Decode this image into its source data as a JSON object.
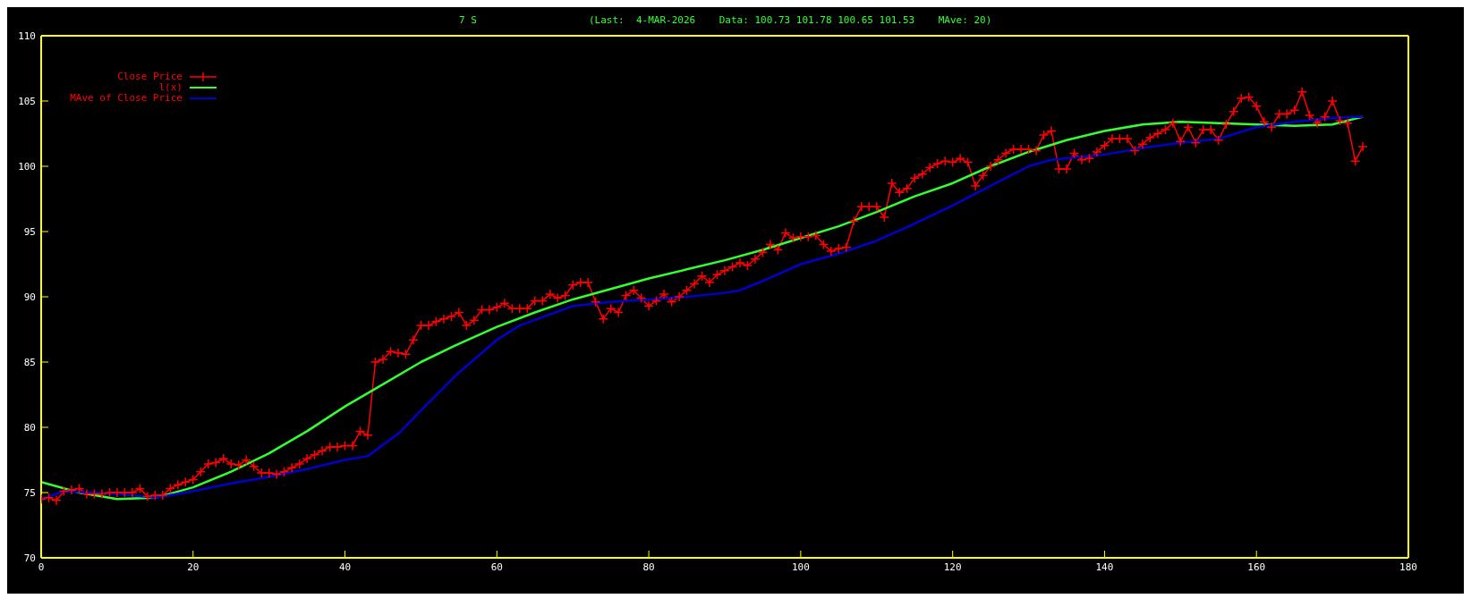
{
  "chart_data": {
    "type": "line",
    "title": "(Last:  4-MAR-2026    Data: 100.73 101.78 100.65 101.53    MAve: 20)",
    "annotations": [
      "7 S"
    ],
    "xlim": [
      0,
      180
    ],
    "xticks": [
      0,
      20,
      40,
      60,
      80,
      100,
      120,
      140,
      160,
      180
    ],
    "ylim": [
      70,
      110
    ],
    "yticks": [
      70,
      75,
      80,
      85,
      90,
      95,
      100,
      105,
      110
    ],
    "legend": "top left",
    "series": [
      {
        "name": "Close Price",
        "color": "#ff0000",
        "marker": "cross",
        "x": [
          0,
          1,
          2,
          3,
          4,
          5,
          6,
          7,
          8,
          9,
          10,
          11,
          12,
          13,
          14,
          15,
          16,
          17,
          18,
          19,
          20,
          21,
          22,
          23,
          24,
          25,
          26,
          27,
          28,
          29,
          30,
          31,
          32,
          33,
          34,
          35,
          36,
          37,
          38,
          39,
          40,
          41,
          42,
          43,
          44,
          45,
          46,
          47,
          48,
          49,
          50,
          51,
          52,
          53,
          54,
          55,
          56,
          57,
          58,
          59,
          60,
          61,
          62,
          63,
          64,
          65,
          66,
          67,
          68,
          69,
          70,
          71,
          72,
          73,
          74,
          75,
          76,
          77,
          78,
          79,
          80,
          81,
          82,
          83,
          84,
          85,
          86,
          87,
          88,
          89,
          90,
          91,
          92,
          93,
          94,
          95,
          96,
          97,
          98,
          99,
          100,
          101,
          102,
          103,
          104,
          105,
          106,
          107,
          108,
          109,
          110,
          111,
          112,
          113,
          114,
          115,
          116,
          117,
          118,
          119,
          120,
          121,
          122,
          123,
          124,
          125,
          126,
          127,
          128,
          129,
          130,
          131,
          132,
          133,
          134,
          135,
          136,
          137,
          138,
          139,
          140,
          141,
          142,
          143,
          144,
          145,
          146,
          147,
          148,
          149,
          150,
          151,
          152,
          153,
          154,
          155,
          156,
          157,
          158,
          159,
          160,
          161,
          162,
          163,
          164,
          165,
          166,
          167,
          168,
          169,
          170,
          171,
          172,
          173,
          174
        ],
        "values": [
          74.5,
          74.6,
          74.4,
          75.1,
          75.2,
          75.3,
          74.9,
          74.9,
          74.9,
          75.0,
          75.0,
          75.0,
          75.0,
          75.3,
          74.7,
          74.8,
          74.8,
          75.3,
          75.6,
          75.8,
          76.0,
          76.6,
          77.2,
          77.3,
          77.6,
          77.2,
          77.1,
          77.5,
          77.0,
          76.5,
          76.5,
          76.4,
          76.6,
          76.9,
          77.2,
          77.6,
          77.9,
          78.2,
          78.5,
          78.5,
          78.6,
          78.6,
          79.7,
          79.4,
          85.0,
          85.2,
          85.8,
          85.7,
          85.6,
          86.7,
          87.8,
          87.8,
          88.1,
          88.3,
          88.5,
          88.8,
          87.8,
          88.2,
          89.0,
          89.0,
          89.2,
          89.5,
          89.1,
          89.1,
          89.1,
          89.7,
          89.7,
          90.2,
          89.9,
          90.1,
          90.9,
          91.1,
          91.1,
          89.6,
          88.3,
          89.1,
          88.8,
          90.1,
          90.5,
          89.9,
          89.3,
          89.7,
          90.2,
          89.6,
          90.0,
          90.5,
          91.0,
          91.6,
          91.1,
          91.7,
          92.0,
          92.3,
          92.6,
          92.4,
          92.9,
          93.4,
          94.0,
          93.6,
          94.9,
          94.5,
          94.6,
          94.6,
          94.7,
          94.0,
          93.5,
          93.7,
          93.8,
          95.8,
          96.9,
          96.9,
          96.9,
          96.1,
          98.7,
          98.0,
          98.3,
          99.1,
          99.4,
          99.9,
          100.2,
          100.4,
          100.3,
          100.6,
          100.3,
          98.5,
          99.3,
          100.0,
          100.5,
          101.0,
          101.3,
          101.3,
          101.3,
          101.2,
          102.4,
          102.7,
          99.8,
          99.8,
          101.0,
          100.5,
          100.6,
          101.1,
          101.6,
          102.1,
          102.1,
          102.1,
          101.2,
          101.7,
          102.2,
          102.5,
          102.8,
          103.3,
          101.9,
          103.0,
          101.8,
          102.8,
          102.8,
          102.0,
          103.2,
          104.2,
          105.2,
          105.3,
          104.6,
          103.4,
          103.0,
          104.0,
          104.0,
          104.3,
          105.7,
          103.9,
          103.3,
          103.8,
          105.0,
          103.5,
          103.3,
          100.4,
          101.5
        ]
      },
      {
        "name": "l(x)",
        "color": "#33ff33",
        "marker": "none",
        "x": [
          0,
          5,
          10,
          15,
          20,
          25,
          30,
          35,
          40,
          45,
          50,
          55,
          60,
          65,
          70,
          75,
          80,
          85,
          90,
          95,
          100,
          105,
          110,
          115,
          120,
          125,
          130,
          135,
          140,
          145,
          150,
          155,
          160,
          165,
          170,
          174
        ],
        "values": [
          75.8,
          75.0,
          74.5,
          74.6,
          75.4,
          76.6,
          78.0,
          79.7,
          81.6,
          83.3,
          85.0,
          86.4,
          87.7,
          88.8,
          89.8,
          90.6,
          91.4,
          92.1,
          92.8,
          93.6,
          94.5,
          95.4,
          96.5,
          97.7,
          98.7,
          100.0,
          101.1,
          102.0,
          102.7,
          103.2,
          103.4,
          103.3,
          103.2,
          103.1,
          103.2,
          103.8
        ]
      },
      {
        "name": "MAve of Close Price",
        "color": "#0000cc",
        "marker": "none",
        "x": [
          0,
          3,
          10,
          15,
          20,
          25,
          30,
          35,
          40,
          43,
          47,
          50,
          55,
          60,
          63,
          70,
          75,
          80,
          85,
          90,
          92,
          95,
          100,
          105,
          110,
          115,
          120,
          125,
          130,
          133,
          140,
          145,
          150,
          155,
          160,
          165,
          170,
          174
        ],
        "values": [
          74.5,
          75.1,
          74.9,
          74.6,
          75.1,
          75.7,
          76.2,
          76.8,
          77.5,
          77.8,
          79.5,
          81.3,
          84.2,
          86.7,
          87.8,
          89.3,
          89.6,
          89.8,
          90.0,
          90.3,
          90.5,
          91.2,
          92.5,
          93.3,
          94.3,
          95.6,
          97.0,
          98.5,
          100.0,
          100.5,
          100.9,
          101.4,
          101.8,
          102.1,
          103.0,
          103.4,
          103.7,
          103.8
        ]
      }
    ]
  }
}
